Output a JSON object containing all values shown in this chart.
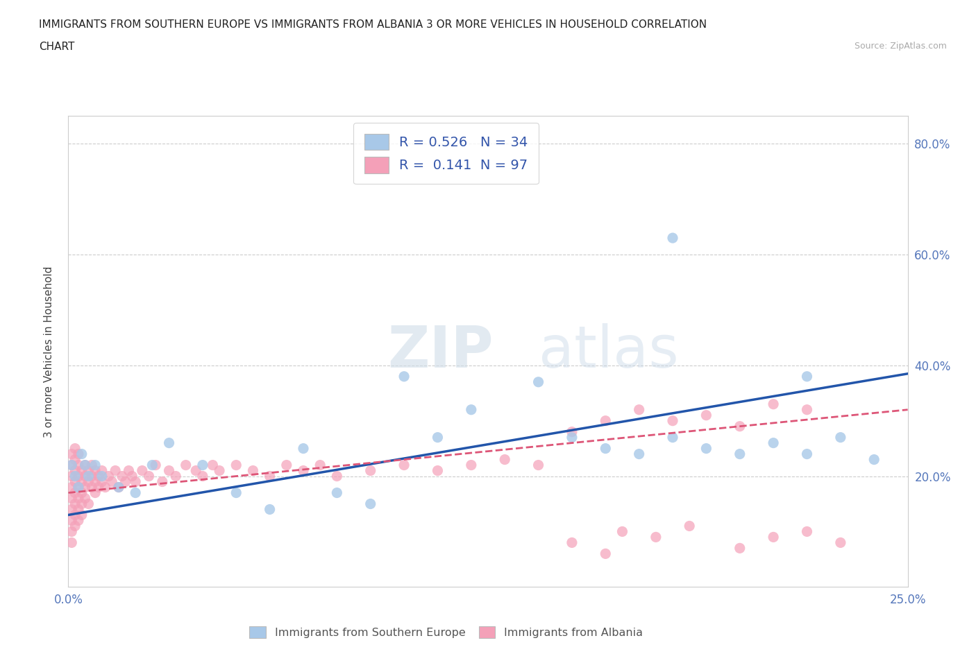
{
  "title_line1": "IMMIGRANTS FROM SOUTHERN EUROPE VS IMMIGRANTS FROM ALBANIA 3 OR MORE VEHICLES IN HOUSEHOLD CORRELATION",
  "title_line2": "CHART",
  "source_text": "Source: ZipAtlas.com",
  "xlim": [
    0.0,
    0.25
  ],
  "ylim": [
    0.0,
    0.85
  ],
  "ylabel": "3 or more Vehicles in Household",
  "blue_color": "#a8c8e8",
  "pink_color": "#f4a0b8",
  "blue_line_color": "#2255aa",
  "pink_line_color": "#dd5577",
  "legend_r1": "R = 0.526",
  "legend_n1": "N = 34",
  "legend_r2": "R =  0.141",
  "legend_n2": "N = 97",
  "watermark_zip": "ZIP",
  "watermark_atlas": "atlas",
  "blue_scatter_x": [
    0.001,
    0.002,
    0.003,
    0.004,
    0.005,
    0.006,
    0.008,
    0.01,
    0.015,
    0.02,
    0.025,
    0.03,
    0.04,
    0.05,
    0.06,
    0.07,
    0.08,
    0.09,
    0.1,
    0.11,
    0.12,
    0.14,
    0.15,
    0.16,
    0.17,
    0.18,
    0.19,
    0.2,
    0.21,
    0.22,
    0.23,
    0.24,
    0.18,
    0.22
  ],
  "blue_scatter_y": [
    0.22,
    0.2,
    0.18,
    0.24,
    0.22,
    0.2,
    0.22,
    0.2,
    0.18,
    0.17,
    0.22,
    0.26,
    0.22,
    0.17,
    0.14,
    0.25,
    0.17,
    0.15,
    0.38,
    0.27,
    0.32,
    0.37,
    0.27,
    0.25,
    0.24,
    0.27,
    0.25,
    0.24,
    0.26,
    0.24,
    0.27,
    0.23,
    0.63,
    0.38
  ],
  "pink_scatter_x": [
    0.001,
    0.001,
    0.001,
    0.001,
    0.001,
    0.001,
    0.001,
    0.001,
    0.001,
    0.002,
    0.002,
    0.002,
    0.002,
    0.002,
    0.002,
    0.002,
    0.002,
    0.003,
    0.003,
    0.003,
    0.003,
    0.003,
    0.003,
    0.003,
    0.004,
    0.004,
    0.004,
    0.004,
    0.004,
    0.005,
    0.005,
    0.005,
    0.005,
    0.006,
    0.006,
    0.006,
    0.007,
    0.007,
    0.007,
    0.008,
    0.008,
    0.008,
    0.009,
    0.009,
    0.01,
    0.01,
    0.011,
    0.012,
    0.013,
    0.014,
    0.015,
    0.016,
    0.017,
    0.018,
    0.019,
    0.02,
    0.022,
    0.024,
    0.026,
    0.028,
    0.03,
    0.032,
    0.035,
    0.038,
    0.04,
    0.043,
    0.045,
    0.05,
    0.055,
    0.06,
    0.065,
    0.07,
    0.075,
    0.08,
    0.09,
    0.1,
    0.11,
    0.12,
    0.13,
    0.14,
    0.15,
    0.16,
    0.17,
    0.18,
    0.19,
    0.2,
    0.21,
    0.22,
    0.15,
    0.16,
    0.165,
    0.175,
    0.185,
    0.2,
    0.21,
    0.22,
    0.23
  ],
  "pink_scatter_y": [
    0.18,
    0.16,
    0.2,
    0.22,
    0.14,
    0.12,
    0.24,
    0.1,
    0.08,
    0.15,
    0.17,
    0.19,
    0.21,
    0.13,
    0.23,
    0.25,
    0.11,
    0.16,
    0.18,
    0.2,
    0.22,
    0.14,
    0.12,
    0.24,
    0.17,
    0.19,
    0.21,
    0.15,
    0.13,
    0.18,
    0.2,
    0.22,
    0.16,
    0.19,
    0.21,
    0.15,
    0.18,
    0.2,
    0.22,
    0.19,
    0.21,
    0.17,
    0.2,
    0.18,
    0.19,
    0.21,
    0.18,
    0.2,
    0.19,
    0.21,
    0.18,
    0.2,
    0.19,
    0.21,
    0.2,
    0.19,
    0.21,
    0.2,
    0.22,
    0.19,
    0.21,
    0.2,
    0.22,
    0.21,
    0.2,
    0.22,
    0.21,
    0.22,
    0.21,
    0.2,
    0.22,
    0.21,
    0.22,
    0.2,
    0.21,
    0.22,
    0.21,
    0.22,
    0.23,
    0.22,
    0.28,
    0.3,
    0.32,
    0.3,
    0.31,
    0.29,
    0.33,
    0.32,
    0.08,
    0.06,
    0.1,
    0.09,
    0.11,
    0.07,
    0.09,
    0.1,
    0.08
  ],
  "blue_line_x0": 0.0,
  "blue_line_y0": 0.13,
  "blue_line_x1": 0.25,
  "blue_line_y1": 0.385,
  "pink_line_x0": 0.0,
  "pink_line_y0": 0.17,
  "pink_line_x1": 0.25,
  "pink_line_y1": 0.32,
  "ytick_vals": [
    0.0,
    0.2,
    0.4,
    0.6,
    0.8
  ],
  "ytick_labels": [
    "",
    "20.0%",
    "40.0%",
    "60.0%",
    "80.0%"
  ],
  "xtick_vals": [
    0.0,
    0.05,
    0.1,
    0.15,
    0.2,
    0.25
  ],
  "xtick_labels": [
    "0.0%",
    "",
    "",
    "",
    "",
    "25.0%"
  ]
}
